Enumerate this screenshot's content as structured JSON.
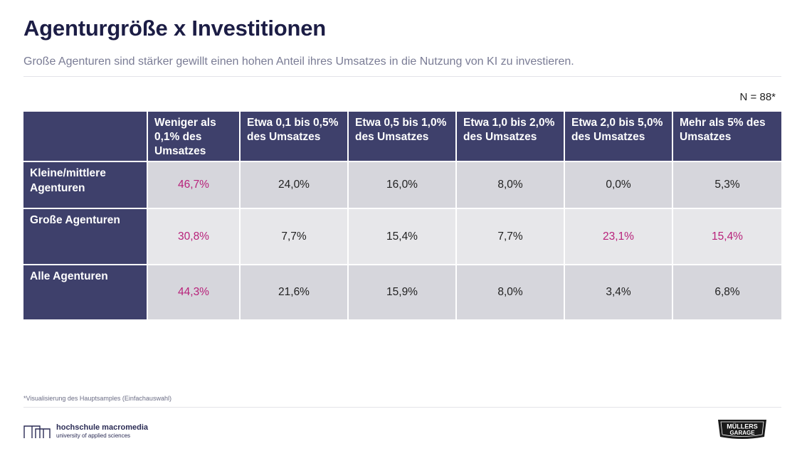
{
  "title": "Agenturgröße x Investitionen",
  "subtitle": "Große Agenturen sind stärker gewillt einen hohen Anteil ihres Umsatzes in die Nutzung von KI zu investieren.",
  "sample_size": "N = 88*",
  "table": {
    "columns": [
      "",
      "Weniger als 0,1% des Umsatzes",
      "Etwa 0,1 bis 0,5% des Umsatzes",
      "Etwa 0,5 bis 1,0% des Umsatzes",
      "Etwa 1,0 bis 2,0% des Umsatzes",
      "Etwa 2,0 bis 5,0% des Umsatzes",
      "Mehr als 5% des Umsatzes"
    ],
    "rows": [
      {
        "label": "Kleine/mittlere Agenturen",
        "values": [
          "46,7%",
          "24,0%",
          "16,0%",
          "8,0%",
          "0,0%",
          "5,3%"
        ]
      },
      {
        "label": "Große Agenturen",
        "values": [
          "30,8%",
          "7,7%",
          "15,4%",
          "7,7%",
          "23,1%",
          "15,4%"
        ]
      },
      {
        "label": "Alle Agenturen",
        "values": [
          "44,3%",
          "21,6%",
          "15,9%",
          "8,0%",
          "3,4%",
          "6,8%"
        ]
      }
    ],
    "highlight_color": "#b8217a",
    "header_color": "#3e406b"
  },
  "footnote": "*Visualisierung des Hauptsamples (Einfachauswahl)",
  "logo_left": {
    "name": "hochschule macromedia",
    "tagline": "university of applied sciences"
  },
  "logo_right": {
    "line1": "MÜLLERS",
    "line2": "GARAGE"
  }
}
